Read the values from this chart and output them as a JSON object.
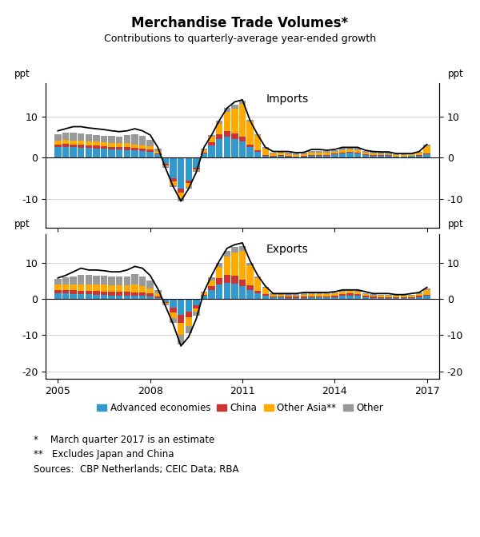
{
  "title": "Merchandise Trade Volumes*",
  "subtitle": "Contributions to quarterly-average year-ended growth",
  "colors": {
    "advanced": "#3399CC",
    "china": "#CC3333",
    "other_asia": "#FFAA00",
    "other": "#999999",
    "line": "#000000"
  },
  "legend_labels": [
    "Advanced economies",
    "China",
    "Other Asia**",
    "Other"
  ],
  "footnotes": [
    "*    March quarter 2017 is an estimate",
    "**   Excludes Japan and China",
    "Sources:  CBP Netherlands; CEIC Data; RBA"
  ],
  "imports": {
    "ylim": [
      -17,
      18
    ],
    "yticks": [
      -10,
      0,
      10
    ],
    "label": "Imports",
    "advanced": [
      2.5,
      2.6,
      2.5,
      2.4,
      2.3,
      2.2,
      2.1,
      2.0,
      2.0,
      1.9,
      1.8,
      1.7,
      1.5,
      0.8,
      -1.5,
      -5.0,
      -7.5,
      -5.5,
      -2.5,
      1.0,
      3.0,
      4.5,
      5.0,
      4.5,
      4.0,
      2.5,
      1.5,
      0.5,
      0.3,
      0.5,
      0.3,
      0.2,
      0.3,
      0.5,
      0.5,
      0.5,
      0.8,
      1.0,
      1.2,
      1.0,
      0.7,
      0.5,
      0.5,
      0.5,
      0.3,
      0.3,
      0.4,
      0.5,
      0.8
    ],
    "china": [
      0.7,
      0.7,
      0.7,
      0.7,
      0.7,
      0.7,
      0.6,
      0.6,
      0.6,
      0.6,
      0.5,
      0.5,
      0.5,
      0.3,
      -0.3,
      -0.8,
      -1.0,
      -0.7,
      -0.3,
      0.3,
      0.8,
      1.2,
      1.5,
      1.3,
      1.0,
      0.7,
      0.4,
      0.2,
      0.2,
      0.2,
      0.2,
      0.1,
      0.2,
      0.2,
      0.2,
      0.2,
      0.2,
      0.3,
      0.3,
      0.3,
      0.2,
      0.2,
      0.1,
      0.1,
      0.0,
      0.0,
      0.0,
      0.1,
      0.2
    ],
    "other_asia": [
      1.0,
      1.0,
      1.0,
      1.0,
      1.0,
      1.0,
      1.0,
      1.0,
      0.9,
      1.0,
      0.9,
      0.8,
      0.8,
      0.5,
      -0.3,
      -0.8,
      -1.2,
      -0.8,
      -0.3,
      0.5,
      1.2,
      2.5,
      4.5,
      6.0,
      8.0,
      5.5,
      3.5,
      1.5,
      0.5,
      0.5,
      0.3,
      0.3,
      0.4,
      0.5,
      0.5,
      0.5,
      0.5,
      0.5,
      0.5,
      0.5,
      0.4,
      0.4,
      0.3,
      0.3,
      0.3,
      0.3,
      0.4,
      0.6,
      1.8
    ],
    "other": [
      1.5,
      1.7,
      1.8,
      1.8,
      1.7,
      1.6,
      1.6,
      1.6,
      1.5,
      2.0,
      2.5,
      2.2,
      1.5,
      0.5,
      -0.3,
      -0.5,
      -0.8,
      -0.5,
      -0.3,
      0.3,
      0.5,
      0.8,
      1.0,
      1.0,
      0.7,
      0.5,
      0.3,
      0.3,
      0.3,
      0.4,
      0.4,
      0.4,
      0.3,
      0.4,
      0.4,
      0.4,
      0.4,
      0.5,
      0.5,
      0.5,
      0.4,
      0.4,
      0.3,
      0.3,
      0.2,
      0.2,
      0.2,
      0.2,
      0.3
    ],
    "line": [
      6.5,
      7.0,
      7.5,
      7.5,
      7.2,
      7.0,
      6.8,
      6.5,
      6.3,
      6.5,
      7.0,
      6.5,
      5.5,
      2.5,
      -2.5,
      -7.0,
      -10.5,
      -7.5,
      -3.5,
      2.5,
      5.5,
      9.0,
      12.0,
      13.5,
      14.0,
      9.0,
      5.5,
      2.5,
      1.5,
      1.5,
      1.5,
      1.2,
      1.3,
      2.0,
      2.0,
      1.8,
      2.0,
      2.5,
      2.5,
      2.5,
      1.8,
      1.5,
      1.4,
      1.4,
      1.0,
      1.0,
      1.0,
      1.5,
      3.2
    ]
  },
  "exports": {
    "ylim": [
      -22,
      18
    ],
    "yticks": [
      -20,
      -10,
      0,
      10
    ],
    "label": "Exports",
    "advanced": [
      1.5,
      1.5,
      1.4,
      1.3,
      1.3,
      1.2,
      1.1,
      1.0,
      1.0,
      1.0,
      0.9,
      0.8,
      0.7,
      0.3,
      -0.8,
      -2.5,
      -4.5,
      -3.5,
      -1.8,
      0.8,
      2.5,
      4.0,
      4.5,
      4.2,
      3.5,
      2.5,
      1.5,
      0.8,
      0.4,
      0.4,
      0.3,
      0.3,
      0.3,
      0.4,
      0.4,
      0.4,
      0.5,
      0.8,
      1.0,
      0.8,
      0.5,
      0.3,
      0.3,
      0.3,
      0.3,
      0.3,
      0.3,
      0.5,
      0.8
    ],
    "china": [
      1.0,
      1.0,
      1.0,
      1.0,
      1.0,
      1.0,
      1.0,
      1.0,
      1.0,
      1.0,
      1.0,
      0.9,
      0.8,
      0.4,
      -0.3,
      -1.2,
      -2.0,
      -1.5,
      -0.8,
      0.4,
      1.0,
      1.8,
      2.2,
      2.2,
      1.8,
      1.2,
      0.8,
      0.5,
      0.3,
      0.3,
      0.3,
      0.3,
      0.3,
      0.3,
      0.3,
      0.3,
      0.4,
      0.5,
      0.5,
      0.5,
      0.3,
      0.3,
      0.2,
      0.2,
      0.2,
      0.2,
      0.2,
      0.3,
      0.4
    ],
    "other_asia": [
      1.5,
      1.6,
      1.7,
      1.8,
      1.8,
      1.8,
      1.8,
      1.8,
      1.8,
      1.8,
      2.0,
      1.8,
      1.5,
      0.8,
      -0.3,
      -1.5,
      -3.5,
      -2.5,
      -1.0,
      0.5,
      1.5,
      3.0,
      5.0,
      6.5,
      8.0,
      5.5,
      3.5,
      1.8,
      0.5,
      0.5,
      0.4,
      0.4,
      0.6,
      0.6,
      0.6,
      0.6,
      0.6,
      0.7,
      0.7,
      0.7,
      0.5,
      0.4,
      0.4,
      0.4,
      0.4,
      0.4,
      0.4,
      0.6,
      1.2
    ],
    "other": [
      1.5,
      1.8,
      2.2,
      2.5,
      2.5,
      2.5,
      2.5,
      2.5,
      2.5,
      2.5,
      3.0,
      2.8,
      2.2,
      1.0,
      -0.3,
      -1.5,
      -2.5,
      -2.0,
      -1.0,
      0.4,
      1.0,
      1.2,
      1.5,
      1.5,
      1.2,
      0.8,
      0.5,
      0.3,
      0.3,
      0.3,
      0.3,
      0.3,
      0.3,
      0.3,
      0.3,
      0.3,
      0.4,
      0.4,
      0.4,
      0.4,
      0.3,
      0.3,
      0.3,
      0.3,
      0.2,
      0.2,
      0.2,
      0.3,
      0.6
    ],
    "line": [
      5.8,
      6.5,
      7.5,
      8.5,
      8.0,
      8.0,
      7.8,
      7.5,
      7.5,
      8.0,
      9.0,
      8.5,
      6.5,
      2.8,
      -2.0,
      -7.0,
      -13.0,
      -10.5,
      -5.5,
      2.0,
      6.5,
      10.5,
      14.0,
      15.0,
      15.5,
      10.5,
      6.5,
      3.5,
      1.5,
      1.5,
      1.5,
      1.5,
      1.8,
      1.8,
      1.8,
      1.8,
      2.0,
      2.5,
      2.5,
      2.5,
      2.0,
      1.5,
      1.5,
      1.5,
      1.2,
      1.2,
      1.5,
      1.8,
      3.2
    ]
  }
}
